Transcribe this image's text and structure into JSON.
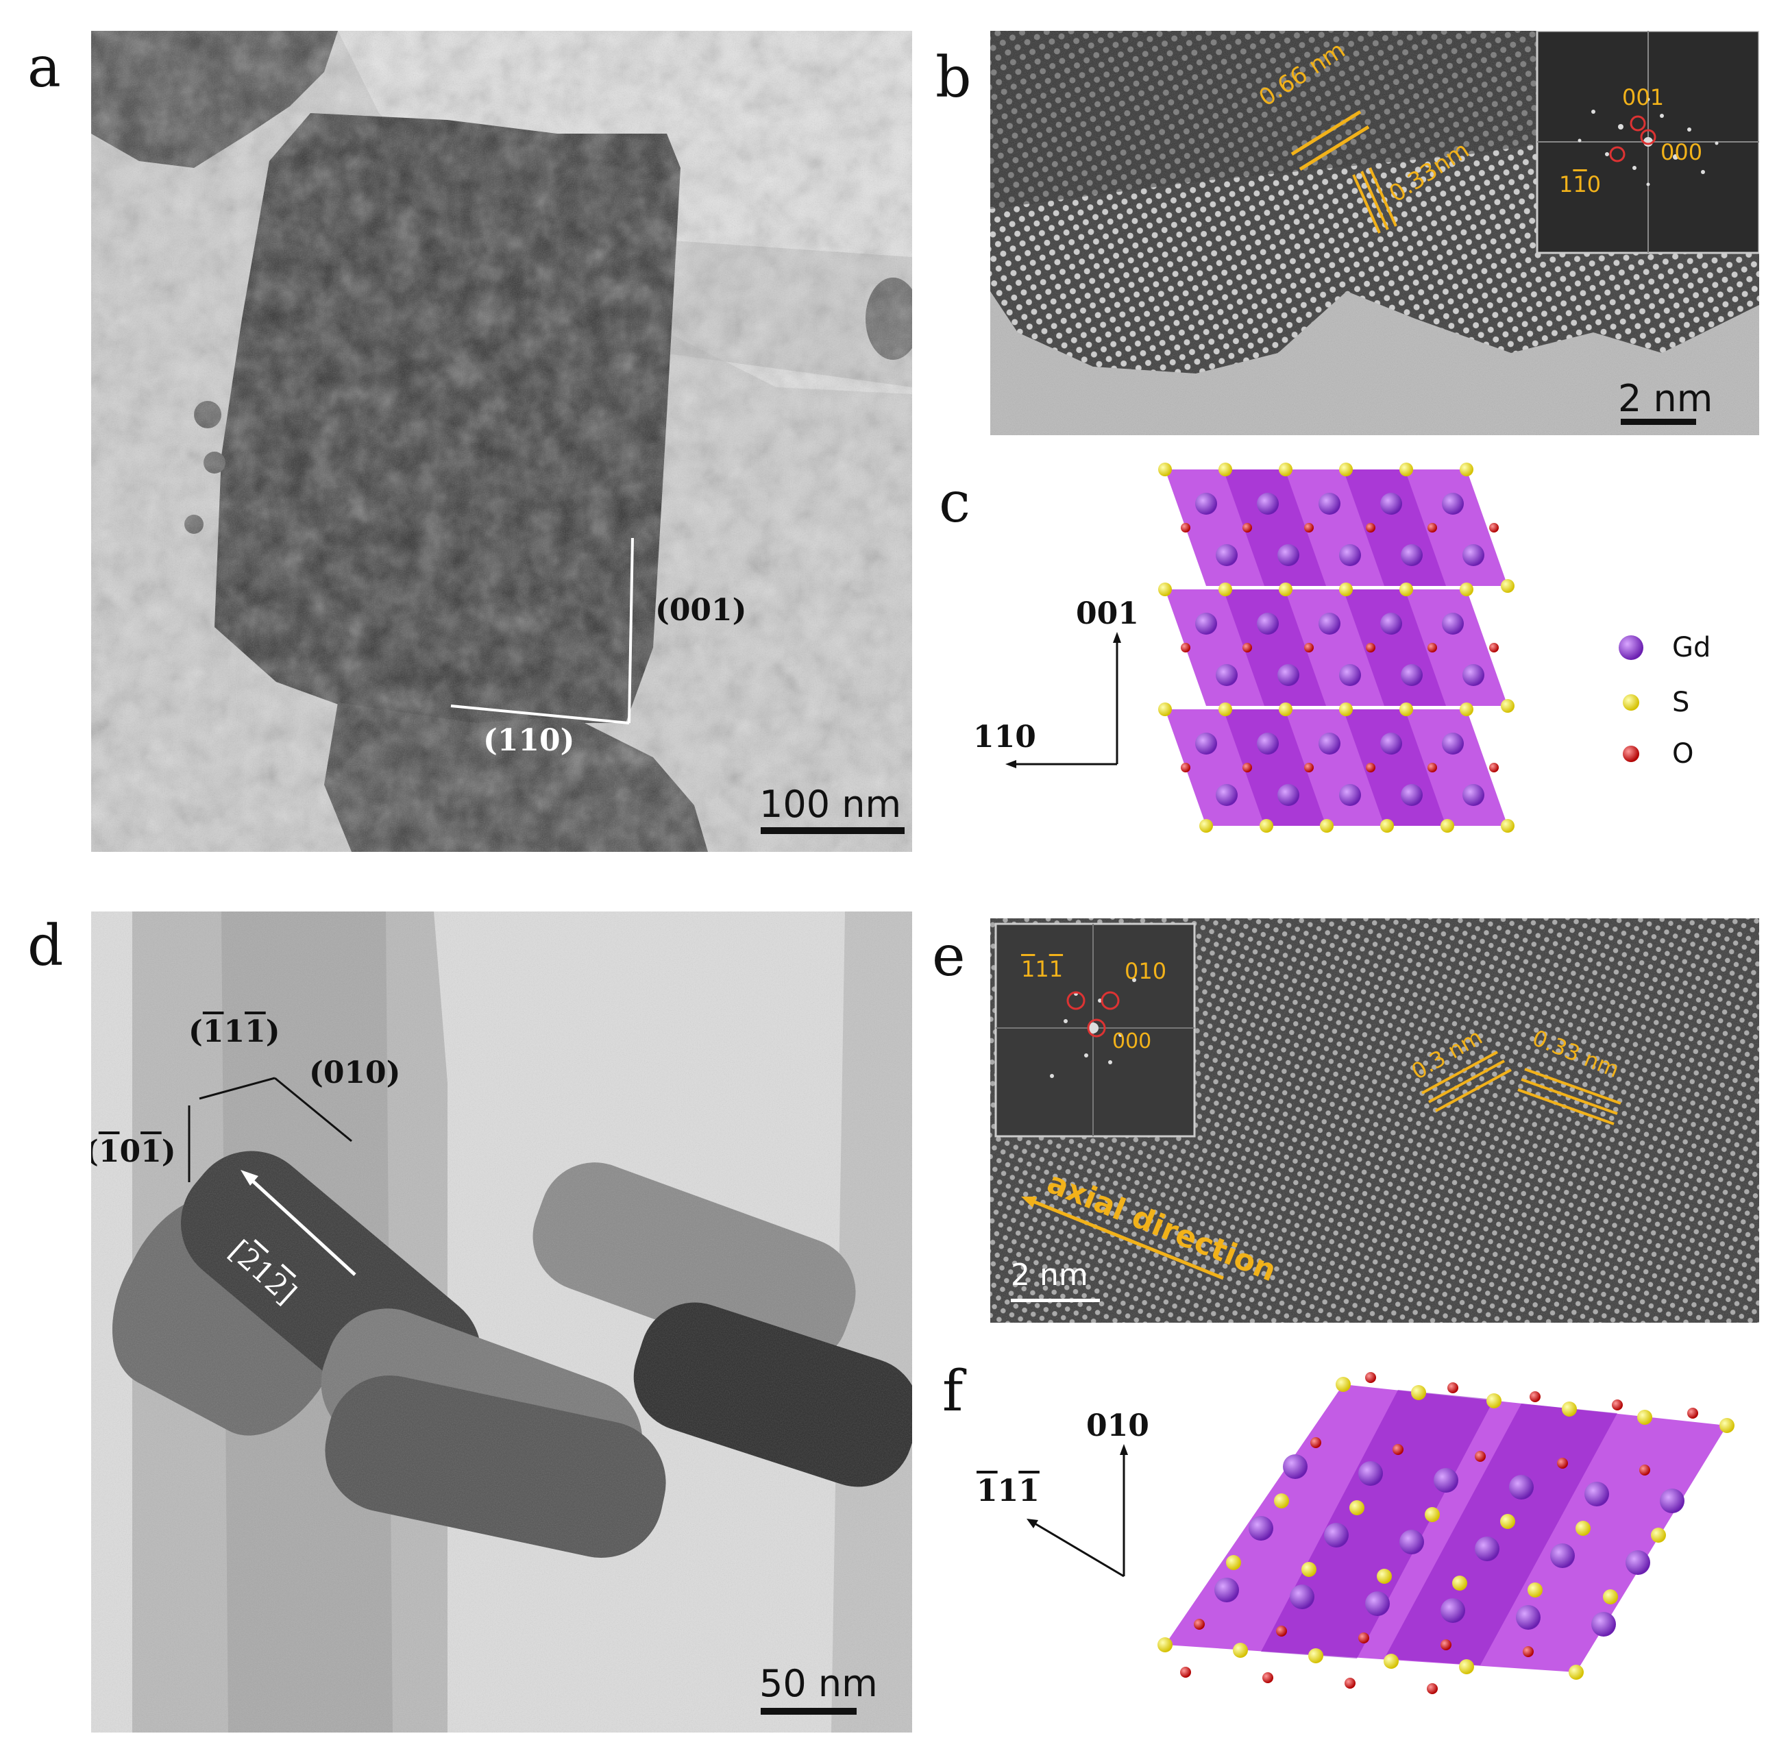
{
  "panels": {
    "a": {
      "letter": "a",
      "facet_vertical": "(001)",
      "facet_horizontal": "(110)",
      "scale_bar": "100 nm"
    },
    "b": {
      "letter": "b",
      "spacing_1": "0.66 nm",
      "spacing_2": "0.33nm",
      "fft_001": "001",
      "fft_000": "000",
      "fft_110_prefix": "1",
      "fft_110_bar": "1",
      "fft_110_suffix": "0",
      "scale_bar": "2 nm"
    },
    "c": {
      "letter": "c",
      "axis_up": "001",
      "axis_left": "110",
      "legend": [
        {
          "label": "Gd",
          "color": "#8a3fc8"
        },
        {
          "label": "S",
          "color": "#f3e21a"
        },
        {
          "label": "O",
          "color": "#e01b1b"
        }
      ]
    },
    "d": {
      "letter": "d",
      "facet_top_a": "1",
      "facet_top_b": "1",
      "facet_top_c": "1",
      "facet_right": "(010)",
      "facet_left_a": "1",
      "facet_left_b": "0",
      "facet_left_c": "1",
      "direction_a": "2",
      "direction_b": "1",
      "direction_c": "2",
      "scale_bar": "50 nm"
    },
    "e": {
      "letter": "e",
      "fft_a": "1",
      "fft_b": "1",
      "fft_c": "1",
      "fft_010": "010",
      "fft_000": "000",
      "spacing_1": "0.3 nm",
      "spacing_2": "0.33 nm",
      "axial": "axial direction",
      "scale_bar": "2 nm"
    },
    "f": {
      "letter": "f",
      "axis_up": "010",
      "axis_left_a": "1",
      "axis_left_b": "1",
      "axis_left_c": "1"
    }
  }
}
